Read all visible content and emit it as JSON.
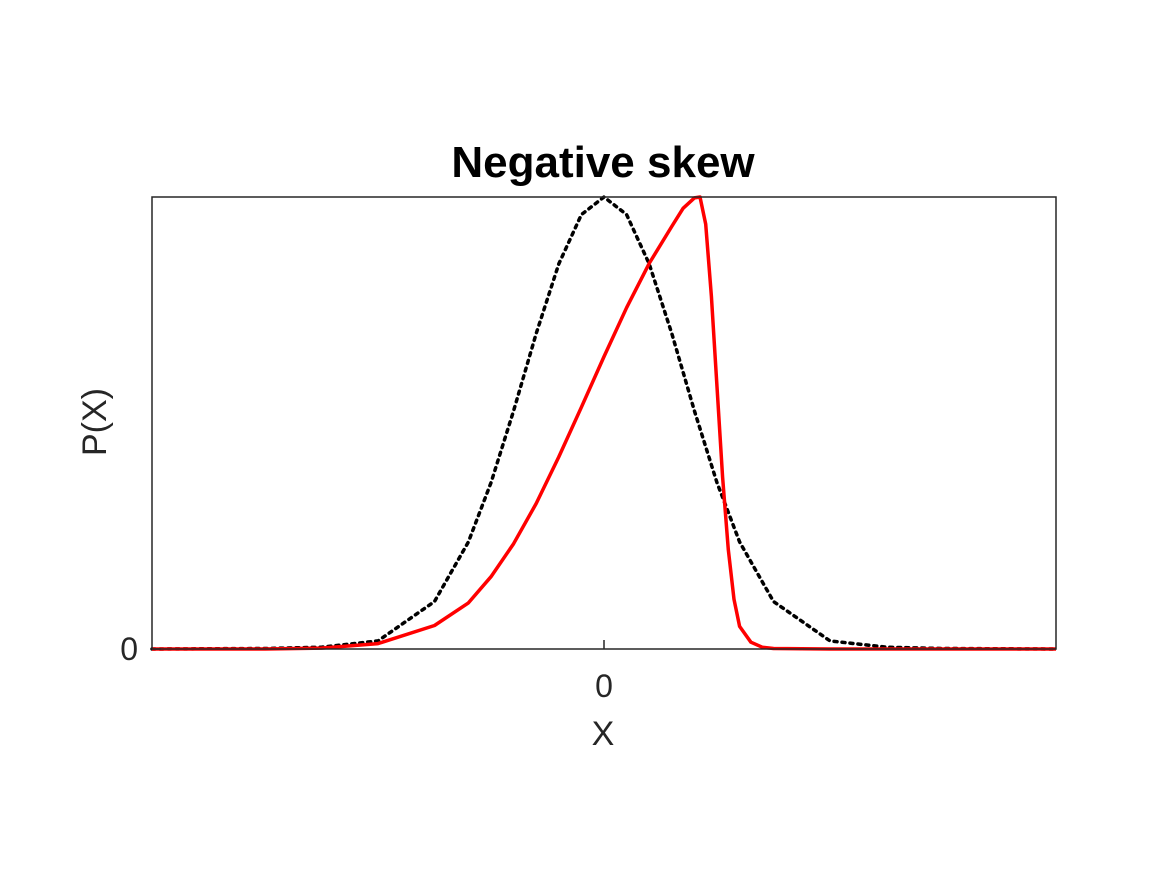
{
  "chart_data": {
    "type": "line",
    "title": "Negative skew",
    "xlabel": "X",
    "ylabel": "P(X)",
    "xlim": [
      -4,
      4
    ],
    "ylim": [
      0,
      1
    ],
    "x_ticks": [
      {
        "value": 0,
        "label": "0"
      }
    ],
    "y_ticks": [
      {
        "value": 0,
        "label": "0"
      }
    ],
    "grid": false,
    "series": [
      {
        "style": "dotted",
        "color": "#000000",
        "x": [
          -4.0,
          -3.0,
          -2.5,
          -2.0,
          -1.5,
          -1.2,
          -1.0,
          -0.8,
          -0.6,
          -0.4,
          -0.2,
          0.0,
          0.2,
          0.4,
          0.6,
          0.8,
          1.0,
          1.2,
          1.5,
          2.0,
          2.5,
          3.0,
          4.0
        ],
        "y": [
          0.0,
          0.001,
          0.004,
          0.018,
          0.105,
          0.237,
          0.368,
          0.527,
          0.698,
          0.852,
          0.961,
          1.0,
          0.961,
          0.852,
          0.698,
          0.527,
          0.368,
          0.237,
          0.105,
          0.018,
          0.004,
          0.001,
          0.0
        ]
      },
      {
        "style": "solid",
        "color": "#ff0000",
        "x": [
          -4.0,
          -3.0,
          -2.5,
          -2.0,
          -1.5,
          -1.2,
          -1.0,
          -0.8,
          -0.6,
          -0.4,
          -0.2,
          0.0,
          0.2,
          0.4,
          0.6,
          0.7,
          0.8,
          0.85,
          0.9,
          0.95,
          1.0,
          1.05,
          1.1,
          1.15,
          1.2,
          1.3,
          1.4,
          1.5,
          2.0,
          3.0,
          4.0
        ],
        "y": [
          0.0,
          0.0,
          0.002,
          0.012,
          0.052,
          0.102,
          0.16,
          0.233,
          0.322,
          0.425,
          0.535,
          0.647,
          0.755,
          0.853,
          0.935,
          0.975,
          0.998,
          1.0,
          0.94,
          0.78,
          0.58,
          0.38,
          0.22,
          0.11,
          0.05,
          0.015,
          0.004,
          0.001,
          0.0,
          0.0,
          0.0
        ]
      }
    ]
  }
}
